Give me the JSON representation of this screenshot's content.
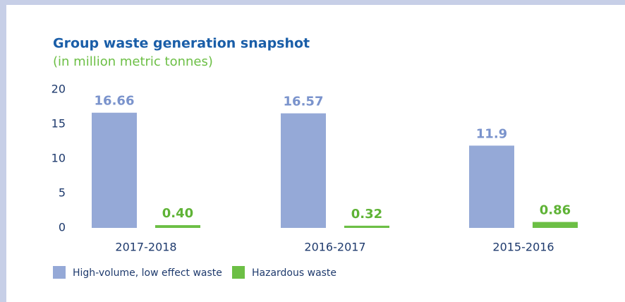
{
  "chart_data": {
    "type": "bar",
    "title": "Group waste generation snapshot",
    "subtitle": "(in million metric tonnes)",
    "categories": [
      "2017-2018",
      "2016-2017",
      "2015-2016"
    ],
    "series": [
      {
        "name": "High-volume, low effect waste",
        "color": "#95a9d7",
        "values": [
          16.66,
          16.57,
          11.9
        ]
      },
      {
        "name": "Hazardous waste",
        "color": "#6cbf45",
        "values": [
          0.4,
          0.32,
          0.86
        ],
        "value_labels": [
          "0.40",
          "0.32",
          "0.86"
        ]
      }
    ],
    "ylim": [
      0,
      20
    ],
    "yticks": [
      0,
      5,
      10,
      15,
      20
    ],
    "legend": "bottom-left"
  }
}
